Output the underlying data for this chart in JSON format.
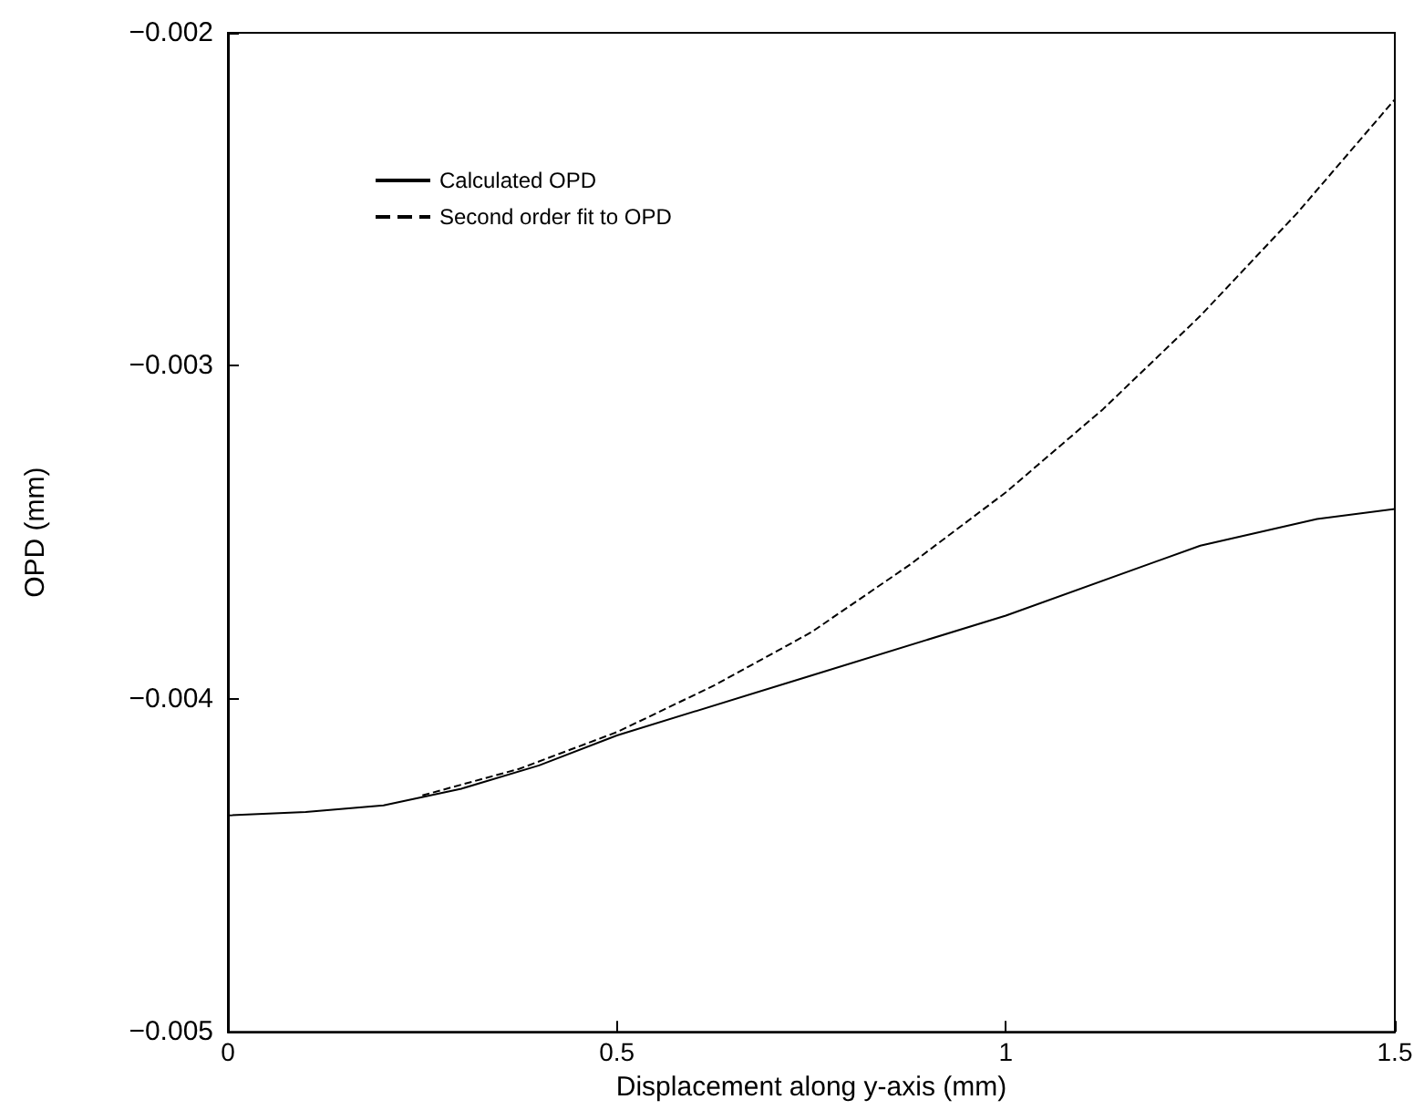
{
  "chart_data": {
    "type": "line",
    "xlabel": "Displacement along y-axis (mm)",
    "ylabel": "OPD (mm)",
    "xlim": [
      0,
      1.5
    ],
    "xticks": [
      0,
      0.5,
      1,
      1.5
    ],
    "ylim": [
      -0.005,
      -0.002
    ],
    "yticks": [
      -0.005,
      -0.004,
      -0.003,
      -0.002
    ],
    "grid": false,
    "legend": "top left",
    "marker": "none",
    "series": [
      {
        "name": "Calculated OPD",
        "color": "#000000",
        "line_style": "solid",
        "x": [
          0,
          0.1,
          0.2,
          0.3,
          0.4,
          0.5,
          0.75,
          1.0,
          1.25,
          1.4,
          1.5
        ],
        "values": [
          -0.00435,
          -0.00434,
          -0.00432,
          -0.00427,
          -0.0042,
          -0.00411,
          -0.00393,
          -0.00375,
          -0.00354,
          -0.00346,
          -0.00343
        ]
      },
      {
        "name": "Second order fit to OPD",
        "color": "#000000",
        "line_style": "dashed",
        "x": [
          0.25,
          0.375,
          0.5,
          0.625,
          0.75,
          0.875,
          1.0,
          1.125,
          1.25,
          1.375,
          1.5
        ],
        "values": [
          -0.00429,
          -0.00421,
          -0.0041,
          -0.00396,
          -0.0038,
          -0.0036,
          -0.00338,
          -0.00313,
          -0.00285,
          -0.00254,
          -0.0022
        ]
      }
    ]
  }
}
